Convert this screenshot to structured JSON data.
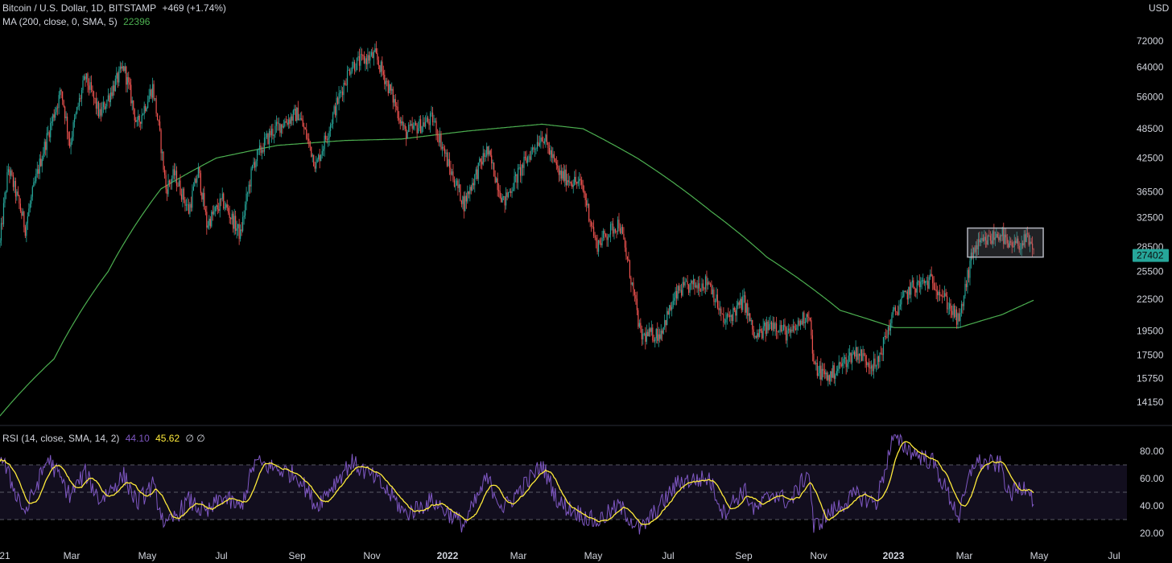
{
  "legend": {
    "symbol": "Bitcoin / U.S. Dollar, 1D, BITSTAMP",
    "change": "+469 (+1.74%)",
    "ma_label": "MA (200, close, 0, SMA, 5)",
    "ma_value": "22396",
    "rsi_label": "RSI (14, close, SMA, 14, 2)",
    "rsi_value": "44.10",
    "rsi_ma_value": "45.62",
    "rsi_extra": "∅ ∅"
  },
  "currency": "USD",
  "last_price_label": "27402",
  "colors": {
    "up": "#26a69a",
    "down": "#ef5350",
    "ma": "#4caf50",
    "rsi": "#7e57c2",
    "rsi_ma": "#ffeb3b",
    "price_tag": "#26a69a",
    "box": "#b2b5be"
  },
  "chart_data": [
    {
      "type": "line",
      "name": "Price",
      "scale": "log",
      "ylim": [
        13000,
        80000
      ],
      "y_ticks": [
        "72000",
        "64000",
        "56000",
        "48500",
        "42500",
        "36500",
        "32500",
        "28500",
        "25500",
        "22500",
        "19500",
        "17500",
        "15750",
        "14150"
      ],
      "x_ticks": [
        {
          "label": "21",
          "bold": false
        },
        {
          "label": "Mar",
          "bold": false
        },
        {
          "label": "May",
          "bold": false
        },
        {
          "label": "Jul",
          "bold": false
        },
        {
          "label": "Sep",
          "bold": false
        },
        {
          "label": "Nov",
          "bold": false
        },
        {
          "label": "2022",
          "bold": true
        },
        {
          "label": "Mar",
          "bold": false
        },
        {
          "label": "May",
          "bold": false
        },
        {
          "label": "Jul",
          "bold": false
        },
        {
          "label": "Sep",
          "bold": false
        },
        {
          "label": "Nov",
          "bold": false
        },
        {
          "label": "2023",
          "bold": true
        },
        {
          "label": "Mar",
          "bold": false
        },
        {
          "label": "May",
          "bold": false
        },
        {
          "label": "Jul",
          "bold": false
        }
      ],
      "x_range": [
        "2021-01-01",
        "2023-07-31"
      ],
      "price_anchors": [
        [
          "2021-01-01",
          29000
        ],
        [
          "2021-01-08",
          40500
        ],
        [
          "2021-01-22",
          31000
        ],
        [
          "2021-02-09",
          46500
        ],
        [
          "2021-02-21",
          57500
        ],
        [
          "2021-02-28",
          45200
        ],
        [
          "2021-03-13",
          61000
        ],
        [
          "2021-03-25",
          51500
        ],
        [
          "2021-04-14",
          64000
        ],
        [
          "2021-04-25",
          49000
        ],
        [
          "2021-05-08",
          58500
        ],
        [
          "2021-05-19",
          37000
        ],
        [
          "2021-05-26",
          39500
        ],
        [
          "2021-06-07",
          33500
        ],
        [
          "2021-06-15",
          40000
        ],
        [
          "2021-06-22",
          31500
        ],
        [
          "2021-07-05",
          35000
        ],
        [
          "2021-07-20",
          30000
        ],
        [
          "2021-07-31",
          41500
        ],
        [
          "2021-08-14",
          47500
        ],
        [
          "2021-08-23",
          49500
        ],
        [
          "2021-09-06",
          52000
        ],
        [
          "2021-09-21",
          41000
        ],
        [
          "2021-10-01",
          48000
        ],
        [
          "2021-10-20",
          64500
        ],
        [
          "2021-11-09",
          67500
        ],
        [
          "2021-11-26",
          54000
        ],
        [
          "2021-12-04",
          47500
        ],
        [
          "2021-12-27",
          50700
        ],
        [
          "2022-01-10",
          40500
        ],
        [
          "2022-01-22",
          34600
        ],
        [
          "2022-02-10",
          44000
        ],
        [
          "2022-02-24",
          34700
        ],
        [
          "2022-03-28",
          47300
        ],
        [
          "2022-04-11",
          39500
        ],
        [
          "2022-04-30",
          37600
        ],
        [
          "2022-05-12",
          28700
        ],
        [
          "2022-05-31",
          31800
        ],
        [
          "2022-06-13",
          22500
        ],
        [
          "2022-06-18",
          19000
        ],
        [
          "2022-07-04",
          19300
        ],
        [
          "2022-07-20",
          23400
        ],
        [
          "2022-07-29",
          23800
        ],
        [
          "2022-08-14",
          24400
        ],
        [
          "2022-08-26",
          20200
        ],
        [
          "2022-09-12",
          22300
        ],
        [
          "2022-09-21",
          18800
        ],
        [
          "2022-10-06",
          20300
        ],
        [
          "2022-10-20",
          19100
        ],
        [
          "2022-11-05",
          21300
        ],
        [
          "2022-11-09",
          16600
        ],
        [
          "2022-11-21",
          15800
        ],
        [
          "2022-12-14",
          17800
        ],
        [
          "2022-12-31",
          16550
        ],
        [
          "2023-01-14",
          20900
        ],
        [
          "2023-01-29",
          23700
        ],
        [
          "2023-02-16",
          24500
        ],
        [
          "2023-03-10",
          20200
        ],
        [
          "2023-03-22",
          28200
        ],
        [
          "2023-04-14",
          30400
        ],
        [
          "2023-04-20",
          28300
        ],
        [
          "2023-05-06",
          29400
        ],
        [
          "2023-05-11",
          27400
        ]
      ],
      "ma200_anchors": [
        [
          "2021-01-01",
          13300
        ],
        [
          "2021-02-15",
          17200
        ],
        [
          "2021-04-01",
          25500
        ],
        [
          "2021-05-15",
          37000
        ],
        [
          "2021-06-30",
          42500
        ],
        [
          "2021-08-20",
          45000
        ],
        [
          "2021-10-15",
          46000
        ],
        [
          "2021-12-01",
          46300
        ],
        [
          "2022-01-25",
          48000
        ],
        [
          "2022-03-28",
          49500
        ],
        [
          "2022-05-01",
          48500
        ],
        [
          "2022-06-15",
          42500
        ],
        [
          "2022-08-15",
          33500
        ],
        [
          "2022-10-01",
          27200
        ],
        [
          "2022-12-01",
          21400
        ],
        [
          "2023-01-15",
          19800
        ],
        [
          "2023-03-10",
          19800
        ],
        [
          "2023-04-15",
          21000
        ],
        [
          "2023-05-11",
          22396
        ]
      ],
      "box": {
        "x_start": "2023-03-17",
        "x_end": "2023-05-19",
        "y_low": 27200,
        "y_high": 31000
      }
    },
    {
      "type": "line",
      "name": "RSI",
      "ylim": [
        15,
        95
      ],
      "y_ticks": [
        80,
        60,
        40,
        20
      ],
      "bands": [
        70,
        50,
        30
      ],
      "rsi_anchors": [
        [
          "2021-01-01",
          78
        ],
        [
          "2021-01-10",
          58
        ],
        [
          "2021-01-22",
          35
        ],
        [
          "2021-02-10",
          75
        ],
        [
          "2021-02-28",
          48
        ],
        [
          "2021-03-13",
          64
        ],
        [
          "2021-03-25",
          44
        ],
        [
          "2021-04-14",
          62
        ],
        [
          "2021-04-25",
          42
        ],
        [
          "2021-05-08",
          55
        ],
        [
          "2021-05-19",
          24
        ],
        [
          "2021-06-07",
          44
        ],
        [
          "2021-06-22",
          34
        ],
        [
          "2021-07-05",
          47
        ],
        [
          "2021-07-20",
          38
        ],
        [
          "2021-08-01",
          72
        ],
        [
          "2021-08-23",
          66
        ],
        [
          "2021-09-06",
          62
        ],
        [
          "2021-09-21",
          40
        ],
        [
          "2021-10-20",
          72
        ],
        [
          "2021-11-09",
          60
        ],
        [
          "2021-11-26",
          44
        ],
        [
          "2021-12-04",
          34
        ],
        [
          "2021-12-27",
          44
        ],
        [
          "2022-01-22",
          26
        ],
        [
          "2022-02-10",
          60
        ],
        [
          "2022-02-24",
          38
        ],
        [
          "2022-03-28",
          70
        ],
        [
          "2022-04-11",
          42
        ],
        [
          "2022-05-12",
          28
        ],
        [
          "2022-05-31",
          40
        ],
        [
          "2022-06-18",
          22
        ],
        [
          "2022-07-04",
          40
        ],
        [
          "2022-07-20",
          58
        ],
        [
          "2022-08-14",
          60
        ],
        [
          "2022-08-26",
          35
        ],
        [
          "2022-09-12",
          52
        ],
        [
          "2022-09-21",
          36
        ],
        [
          "2022-10-06",
          50
        ],
        [
          "2022-10-20",
          42
        ],
        [
          "2022-11-05",
          66
        ],
        [
          "2022-11-09",
          24
        ],
        [
          "2022-11-21",
          34
        ],
        [
          "2022-12-14",
          48
        ],
        [
          "2022-12-31",
          42
        ],
        [
          "2023-01-14",
          90
        ],
        [
          "2023-01-29",
          80
        ],
        [
          "2023-02-16",
          72
        ],
        [
          "2023-03-10",
          32
        ],
        [
          "2023-03-22",
          72
        ],
        [
          "2023-04-14",
          70
        ],
        [
          "2023-04-20",
          48
        ],
        [
          "2023-05-06",
          56
        ],
        [
          "2023-05-11",
          44
        ]
      ]
    }
  ]
}
